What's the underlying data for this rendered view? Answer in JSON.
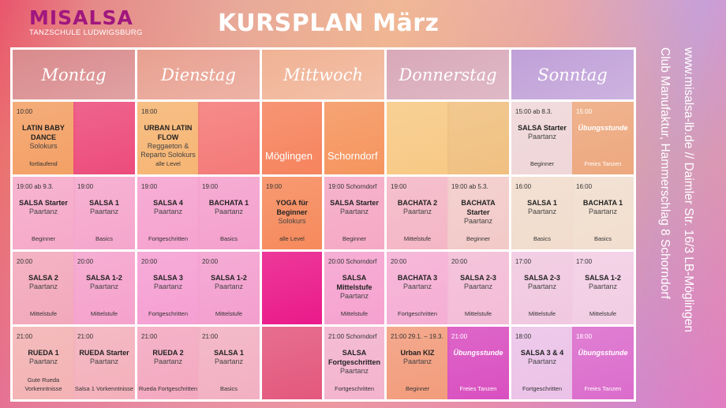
{
  "logo": {
    "name": "MISALSA",
    "sub": "TANZSCHULE LUDWIGSBURG"
  },
  "title": "KURSPLAN März",
  "side": {
    "line1": "www.misalsa-lb.de  // Daimler Str. 16/3 LB-Möglingen",
    "line2": "Club Manufaktur, Hammerschlag 8 Schorndorf"
  },
  "days": [
    {
      "name": "Montag",
      "color": "#d98a8c",
      "slots": [
        [
          {
            "time": "10:00",
            "title": "LATIN BABY DANCE",
            "sub": "Solokurs",
            "level": "fortlaufend",
            "color": "#f3a065"
          },
          {
            "color": "#ec4c7c"
          }
        ],
        [
          {
            "time": "19:00 ab 9.3.",
            "title": "SALSA Starter",
            "sub": "Paartanz",
            "level": "Beginner",
            "color": "#f5a9c8"
          },
          {
            "time": "19:00",
            "title": "SALSA 1",
            "sub": "Paartanz",
            "level": "Basics",
            "color": "#f5a6cc"
          }
        ],
        [
          {
            "time": "20:00",
            "title": "SALSA 2",
            "sub": "Paartanz",
            "level": "Mittelstufe",
            "color": "#f2a8bb"
          },
          {
            "time": "20:00",
            "title": "SALSA 1-2",
            "sub": "Paartanz",
            "level": "Mittelstufe",
            "color": "#f5a2cc"
          }
        ],
        [
          {
            "time": "21:00",
            "title": "RUEDA 1",
            "sub": "Paartanz",
            "level": "Gute Rueda Vorkenntnisse",
            "color": "#f3b2b3"
          },
          {
            "time": "21:00",
            "title": "RUEDA Starter",
            "sub": "Paartanz",
            "level": "Salsa 1 Vorkenntnisse",
            "color": "#f3b0bb"
          }
        ]
      ]
    },
    {
      "name": "Dienstag",
      "color": "#e8a090",
      "slots": [
        [
          {
            "time": "18:00",
            "title": "URBAN LATIN FLOW",
            "sub": "Reggaeton & Reparto Solokurs",
            "level": "alle Level",
            "color": "#f6b573"
          },
          {
            "color": "#f47a78"
          }
        ],
        [
          {
            "time": "19:00",
            "title": "SALSA 4",
            "sub": "Paartanz",
            "level": "Fortgeschritten",
            "color": "#f5a2cf"
          },
          {
            "time": "19:00",
            "title": "BACHATA 1",
            "sub": "Paartanz",
            "level": "Basics",
            "color": "#f4a0cd"
          }
        ],
        [
          {
            "time": "20:00",
            "title": "SALSA 3",
            "sub": "Paartanz",
            "level": "Fortgeschritten",
            "color": "#f59fd2"
          },
          {
            "time": "20:00",
            "title": "SALSA 1-2",
            "sub": "Paartanz",
            "level": "Mittelstufe",
            "color": "#f39fce"
          }
        ],
        [
          {
            "time": "21:00",
            "title": "RUEDA  2",
            "sub": "Paartanz",
            "level": "Rueda Fortgeschritten",
            "color": "#f3a8c0"
          },
          {
            "time": "21:00",
            "title": "SALSA 1",
            "sub": "Paartanz",
            "level": "Basics",
            "color": "#f2b0c2"
          }
        ]
      ]
    },
    {
      "name": "Mittwoch",
      "color": "#f0b294",
      "sep": true,
      "slots": [
        [
          {
            "loc": "Möglingen",
            "color": "#f6845e"
          },
          {
            "loc": "Schorndorf",
            "color": "#f5955e"
          }
        ],
        [
          {
            "time": "19:00",
            "title": "YOGA für Beginner",
            "sub": "Solokurs",
            "level": "alle Level",
            "color": "#f68a5c"
          },
          {
            "time": "19:00 Schorndorf",
            "title": "SALSA Starter",
            "sub": "Paartanz",
            "level": "Beginner",
            "color": "#f5a8c4"
          }
        ],
        [
          {
            "color": "#ea1a8a"
          },
          {
            "time": "20:00 Schorndorf",
            "title": "SALSA Mittelstufe",
            "sub": "Paartanz",
            "level": "Mittelstufe",
            "color": "#f5a2cf"
          }
        ],
        [
          {
            "color": "#e3587d"
          },
          {
            "time": "21:00 Schorndorf",
            "title": "SALSA Fortgeschritten",
            "sub": "Paartanz",
            "level": "Fortgeschritten",
            "color": "#f3b3cd"
          }
        ]
      ]
    },
    {
      "name": "Donnerstag",
      "color": "#d8a8b8",
      "slots": [
        [
          {
            "color": "#f7c985"
          },
          {
            "color": "#f0c080"
          }
        ],
        [
          {
            "time": "19:00",
            "title": "BACHATA 2",
            "sub": "Paartanz",
            "level": "Mittelstufe",
            "color": "#f4b6c6"
          },
          {
            "time": "19:00 ab 5.3.",
            "title": "BACHATA Starter",
            "sub": "Paartanz",
            "level": "Beginner",
            "color": "#f2cac8"
          }
        ],
        [
          {
            "time": "20:00",
            "title": "BACHATA 3",
            "sub": "Paartanz",
            "level": "Fortgeschritten",
            "color": "#f5aed4"
          },
          {
            "time": "20:00",
            "title": "SALSA 2-3",
            "sub": "Paartanz",
            "level": "Mittelstufe",
            "color": "#f3bcd6"
          }
        ],
        [
          {
            "time": "21:00 29.1. – 19.3.",
            "title": "Urban KIZ",
            "sub": "Paartanz",
            "level": "Beginner",
            "color": "#f29c7c"
          },
          {
            "time": "21:00",
            "title": "Übungsstunde",
            "level": "Freies Tanzen",
            "color": "#d94fc0",
            "ub": true
          }
        ]
      ]
    },
    {
      "name": "Sonntag",
      "color": "#c0a0d8",
      "slots": [
        [
          {
            "time": "15:00 ab 8.3.",
            "title": "SALSA Starter",
            "sub": "Paartanz",
            "level": "Beginner",
            "color": "#efd6d8"
          },
          {
            "time": "15:00",
            "title": "Übungsstunde",
            "level": "Freies Tanzen",
            "color": "#eda87e",
            "ub": true
          }
        ],
        [
          {
            "time": "16:00",
            "title": "SALSA 1",
            "sub": "Paartanz",
            "level": "Basics",
            "color": "#f1dccc"
          },
          {
            "time": "16:00",
            "title": "BACHATA 1",
            "sub": "Paartanz",
            "level": "Basics",
            "color": "#f1dece"
          }
        ],
        [
          {
            "time": "17:00",
            "title": "SALSA 2-3",
            "sub": "Paartanz",
            "level": "Mittelstufe",
            "color": "#f0c8e0"
          },
          {
            "time": "17:00",
            "title": "SALSA 1-2",
            "sub": "Paartanz",
            "level": "Mittelstufe",
            "color": "#f2cde4"
          }
        ],
        [
          {
            "time": "18:00",
            "title": "SALSA 3 & 4",
            "sub": "Paartanz",
            "level": "Fortgeschritten",
            "color": "#ebc2e8"
          },
          {
            "time": "18:00",
            "title": "Übungsstunde",
            "level": "Freies Tanzen",
            "color": "#db6ccc",
            "ub": true
          }
        ]
      ]
    }
  ]
}
